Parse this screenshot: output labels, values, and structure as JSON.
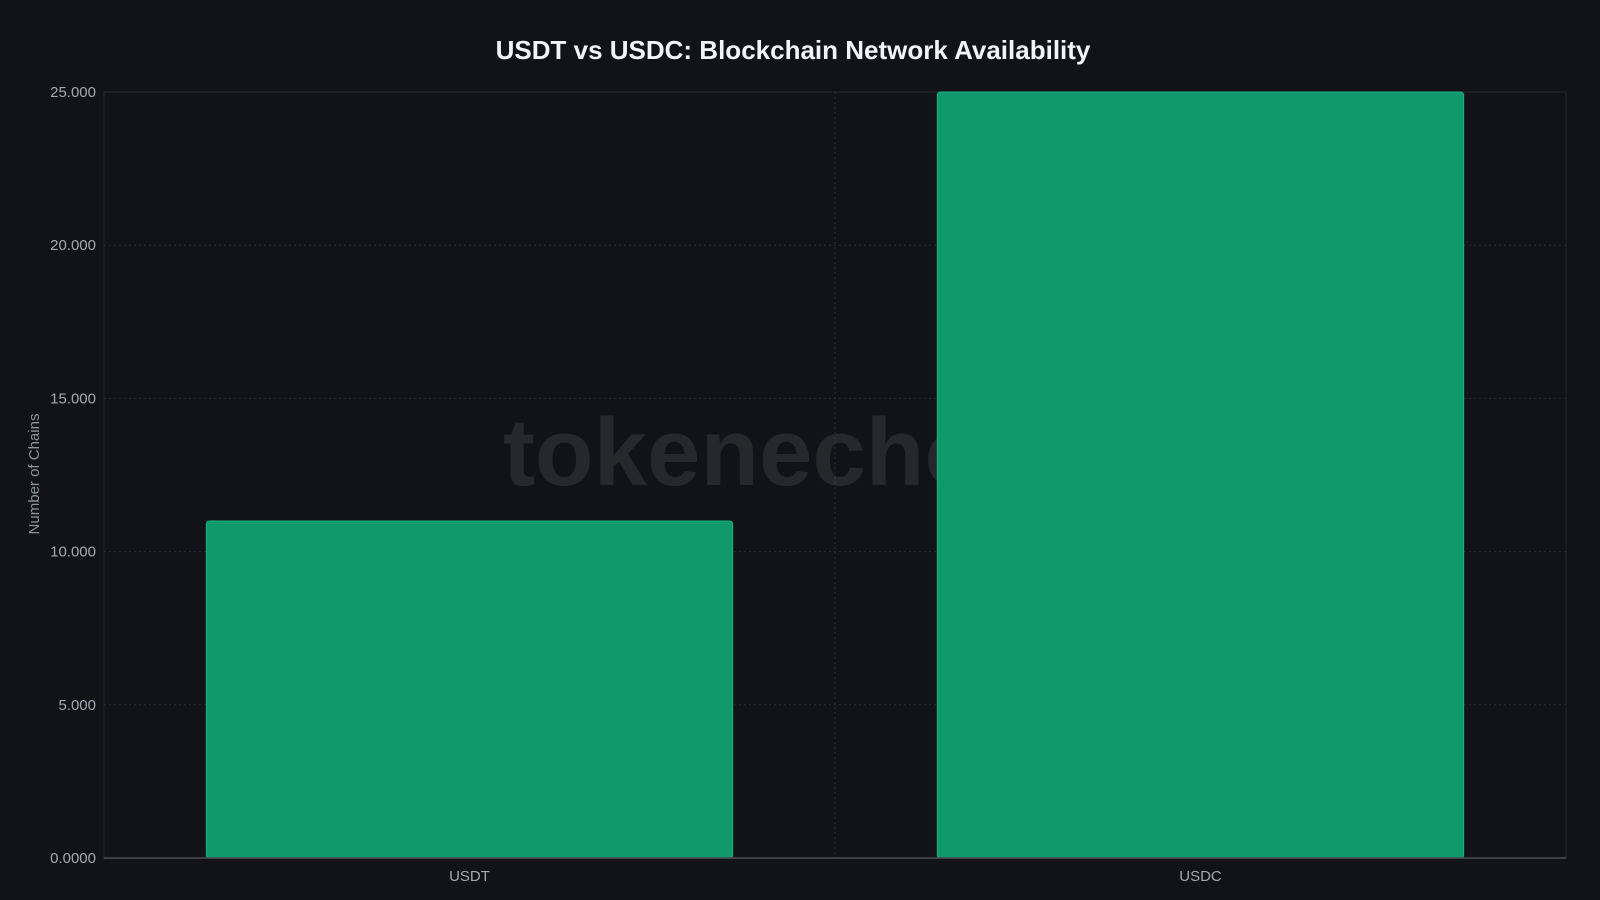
{
  "chart_data": {
    "type": "bar",
    "title": "USDT vs USDC: Blockchain Network Availability",
    "xlabel": "",
    "ylabel": "Number of Chains",
    "categories": [
      "USDT",
      "USDC"
    ],
    "values": [
      11,
      25
    ],
    "ylim": [
      0,
      25
    ],
    "y_ticks": [
      0,
      5,
      10,
      15,
      20,
      25
    ],
    "y_tick_labels": [
      "0.0000",
      "5.000",
      "10.000",
      "15.000",
      "20.000",
      "25.000"
    ],
    "bar_color": "#10996b",
    "grid": true,
    "legend": "none"
  },
  "watermark": "tokenecho.io",
  "colors": {
    "background": "#121318",
    "bar": "#10996b",
    "bar_edge": "#19b37e"
  }
}
